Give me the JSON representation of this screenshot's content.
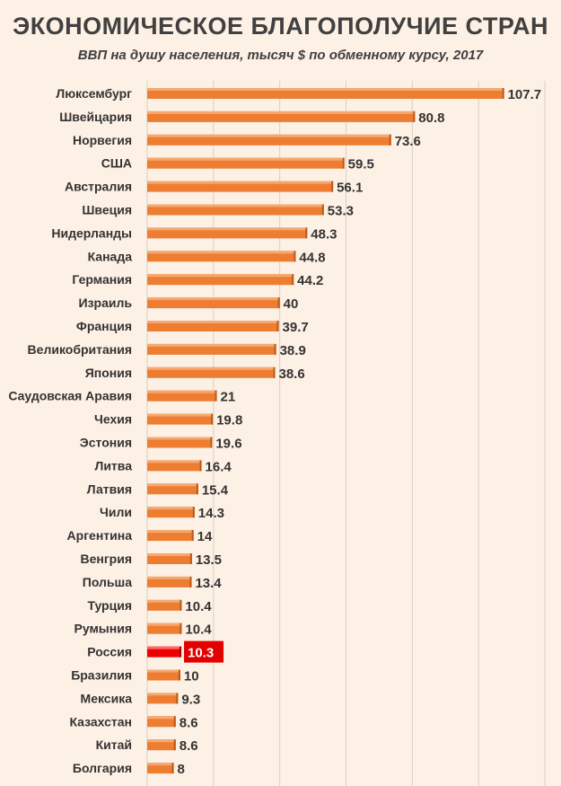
{
  "title": "ЭКОНОМИЧЕСКОЕ БЛАГОПОЛУЧИЕ СТРАН",
  "subtitle": "ВВП на душу населения, тысяч $ по обменному курсу, 2017",
  "colors": {
    "bar": "#ed7d31",
    "highlight": "#ee0000",
    "highlight_label_bg": "#e30000",
    "background": "#fdf0e4",
    "grid": "#d9d0c6"
  },
  "chart_data": {
    "type": "bar",
    "orientation": "horizontal",
    "title": "ЭКОНОМИЧЕСКОЕ БЛАГОПОЛУЧИЕ СТРАН",
    "subtitle": "ВВП на душу населения, тысяч $ по обменному курсу, 2017",
    "xlabel": "",
    "ylabel": "",
    "xlim": [
      0,
      120
    ],
    "grid": true,
    "highlight_category": "Россия",
    "categories": [
      "Люксембург",
      "Швейцария",
      "Норвегия",
      "США",
      "Австралия",
      "Швеция",
      "Нидерланды",
      "Канада",
      "Германия",
      "Израиль",
      "Франция",
      "Великобритания",
      "Япония",
      "Саудовская Аравия",
      "Чехия",
      "Эстония",
      "Литва",
      "Латвия",
      "Чили",
      "Аргентина",
      "Венгрия",
      "Польша",
      "Турция",
      "Румыния",
      "Россия",
      "Бразилия",
      "Мексика",
      "Казахстан",
      "Китай",
      "Болгария"
    ],
    "values": [
      107.7,
      80.8,
      73.6,
      59.5,
      56.1,
      53.3,
      48.3,
      44.8,
      44.2,
      40,
      39.7,
      38.9,
      38.6,
      21,
      19.8,
      19.6,
      16.4,
      15.4,
      14.3,
      14,
      13.5,
      13.4,
      10.4,
      10.4,
      10.3,
      10,
      9.3,
      8.6,
      8.6,
      8
    ]
  }
}
